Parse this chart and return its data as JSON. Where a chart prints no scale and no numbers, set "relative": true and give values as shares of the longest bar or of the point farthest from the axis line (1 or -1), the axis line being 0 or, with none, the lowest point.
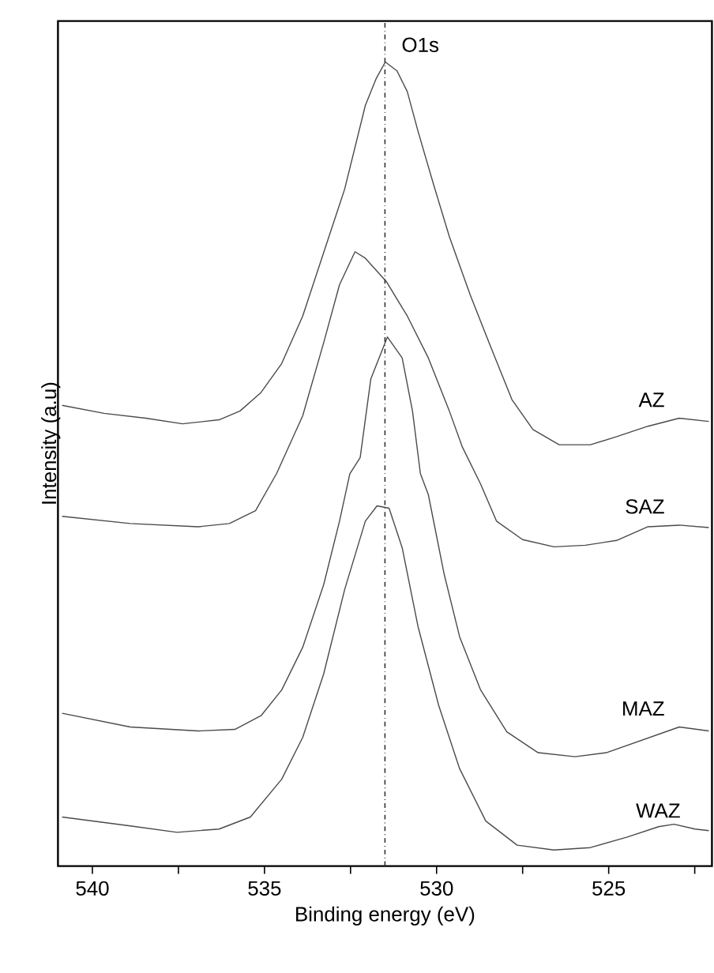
{
  "chart_data": {
    "type": "line",
    "relative": true,
    "xlabel": "Binding energy (eV)",
    "ylabel": "Intensity (a.u)",
    "xlim": [
      541.0,
      522.0
    ],
    "xticks": [
      540,
      {
        "value": 537.5,
        "label": null
      },
      535,
      {
        "value": 532.5,
        "label": null
      },
      530,
      {
        "value": 527.5,
        "label": null
      },
      525,
      {
        "value": 522.5,
        "label": null
      }
    ],
    "grid": false,
    "legend": false,
    "marker": "none",
    "line_style": "solid",
    "ref_lines": [
      {
        "axis": "x",
        "value": 531.5,
        "label": "O1s",
        "line_style": "dashdot",
        "color": "#333333"
      }
    ],
    "series": [
      {
        "name": "AZ",
        "color": "#4a4a4a",
        "x": [
          540.88,
          539.66,
          538.45,
          537.38,
          536.32,
          535.71,
          535.1,
          534.5,
          533.89,
          533.28,
          532.67,
          532.07,
          531.76,
          531.49,
          531.15,
          530.85,
          530.54,
          530.09,
          529.63,
          529.02,
          528.42,
          527.81,
          527.2,
          526.44,
          525.53,
          524.77,
          523.86,
          522.95,
          522.09
        ],
        "values": [
          0.573,
          0.563,
          0.557,
          0.55,
          0.555,
          0.566,
          0.589,
          0.625,
          0.684,
          0.763,
          0.842,
          0.946,
          0.979,
          1.0,
          0.989,
          0.963,
          0.914,
          0.848,
          0.783,
          0.71,
          0.645,
          0.58,
          0.543,
          0.524,
          0.524,
          0.534,
          0.547,
          0.557,
          0.553
        ]
      },
      {
        "name": "SAZ",
        "color": "#4a4a4a",
        "x": [
          540.88,
          538.9,
          536.93,
          536.02,
          535.26,
          534.65,
          533.89,
          533.28,
          532.82,
          532.37,
          532.07,
          531.46,
          530.85,
          530.24,
          529.63,
          529.25,
          528.72,
          528.26,
          527.5,
          526.59,
          525.68,
          524.77,
          523.86,
          522.95,
          522.09
        ],
        "values": [
          0.435,
          0.426,
          0.422,
          0.426,
          0.442,
          0.488,
          0.56,
          0.651,
          0.723,
          0.764,
          0.756,
          0.727,
          0.684,
          0.632,
          0.566,
          0.521,
          0.475,
          0.429,
          0.406,
          0.397,
          0.399,
          0.405,
          0.422,
          0.424,
          0.421
        ]
      },
      {
        "name": "MAZ",
        "color": "#4a4a4a",
        "x": [
          540.88,
          538.9,
          536.93,
          535.86,
          535.1,
          534.5,
          533.89,
          533.28,
          532.82,
          532.52,
          532.22,
          531.91,
          531.43,
          531.0,
          530.7,
          530.47,
          530.24,
          529.78,
          529.33,
          528.72,
          527.96,
          527.05,
          525.98,
          525.07,
          524.01,
          522.95,
          522.09
        ],
        "values": [
          0.19,
          0.173,
          0.168,
          0.17,
          0.187,
          0.219,
          0.272,
          0.35,
          0.429,
          0.488,
          0.508,
          0.606,
          0.658,
          0.632,
          0.566,
          0.488,
          0.462,
          0.363,
          0.285,
          0.219,
          0.167,
          0.141,
          0.136,
          0.141,
          0.157,
          0.173,
          0.168
        ]
      },
      {
        "name": "WAZ",
        "color": "#4a4a4a",
        "x": [
          540.88,
          538.9,
          537.54,
          536.32,
          535.41,
          534.5,
          533.89,
          533.28,
          532.67,
          532.07,
          531.73,
          531.38,
          531.0,
          530.54,
          529.94,
          529.33,
          528.57,
          527.66,
          526.59,
          525.53,
          524.46,
          523.55,
          523.1,
          522.49,
          522.09
        ],
        "values": [
          0.061,
          0.05,
          0.042,
          0.046,
          0.061,
          0.108,
          0.16,
          0.239,
          0.344,
          0.429,
          0.448,
          0.445,
          0.396,
          0.298,
          0.2,
          0.121,
          0.056,
          0.026,
          0.02,
          0.023,
          0.036,
          0.049,
          0.052,
          0.046,
          0.044
        ]
      }
    ]
  }
}
